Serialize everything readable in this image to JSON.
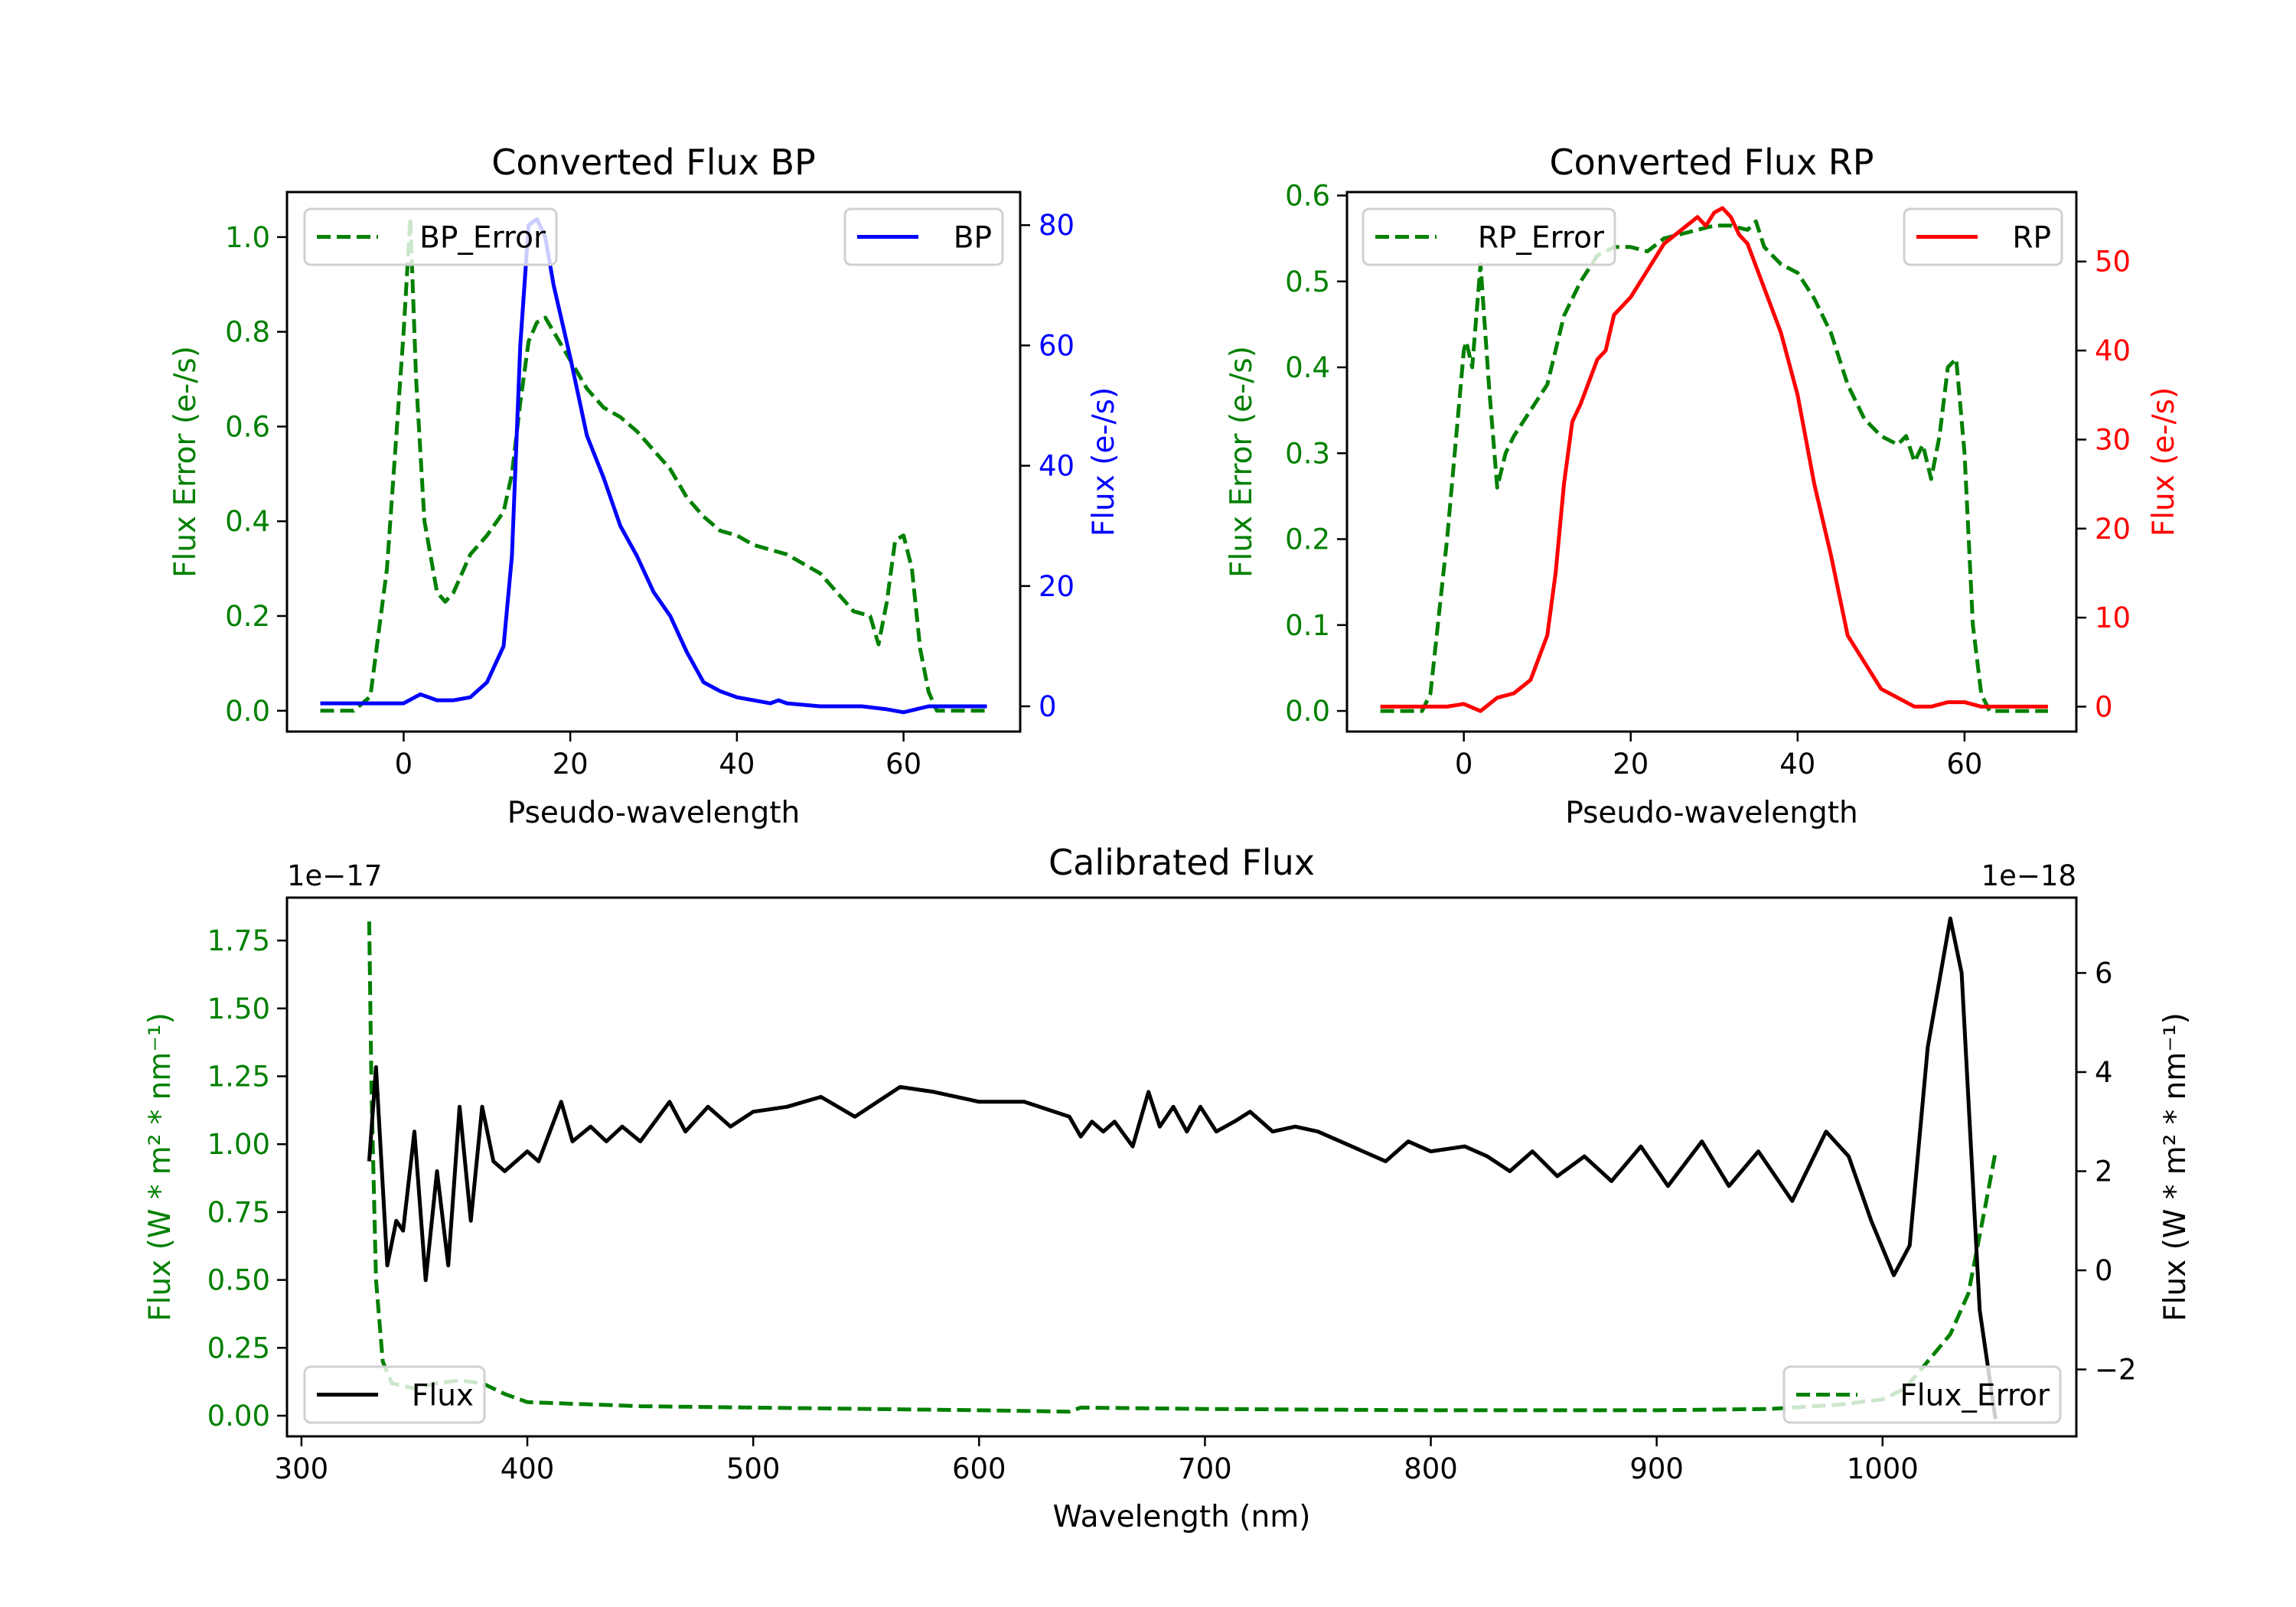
{
  "colors": {
    "green": "#008000",
    "blue": "#0000ff",
    "red": "#ff0000",
    "black": "#000000"
  },
  "chart_data": [
    {
      "id": "bp",
      "type": "line",
      "title": "Converted Flux BP",
      "xlabel": "Pseudo-wavelength",
      "ylabel": "Flux Error (e-/s)",
      "ylabel_right": "Flux (e-/s)",
      "xlim": [
        -14,
        74
      ],
      "ylim": [
        -0.044,
        1.095
      ],
      "ylim_right": [
        -4.2,
        85.5
      ],
      "xticks": [
        {
          "v": 0,
          "label": "0"
        },
        {
          "v": 20,
          "label": "20"
        },
        {
          "v": 40,
          "label": "40"
        },
        {
          "v": 60,
          "label": "60"
        }
      ],
      "yticks": [
        {
          "v": 0,
          "label": "0.0"
        },
        {
          "v": 0.2,
          "label": "0.2"
        },
        {
          "v": 0.4,
          "label": "0.4"
        },
        {
          "v": 0.6,
          "label": "0.6"
        },
        {
          "v": 0.8,
          "label": "0.8"
        },
        {
          "v": 1.0,
          "label": "1.0"
        }
      ],
      "yticks_right": [
        {
          "v": 0,
          "label": "0"
        },
        {
          "v": 20,
          "label": "20"
        },
        {
          "v": 40,
          "label": "40"
        },
        {
          "v": 60,
          "label": "60"
        },
        {
          "v": 80,
          "label": "80"
        }
      ],
      "left_color": "#008000",
      "right_color": "#0000ff",
      "series": [
        {
          "name": "BP_Error",
          "axis": "left",
          "style": "dashed",
          "color": "#008000",
          "legend": "top-left",
          "x": [
            -10,
            -6,
            -4,
            -2,
            0,
            0.8,
            1.5,
            2.5,
            3,
            4,
            5,
            6,
            8,
            10,
            12,
            13,
            14,
            15,
            16,
            17,
            18,
            20,
            22,
            24,
            26,
            28,
            30,
            32,
            34,
            36,
            38,
            40,
            42,
            44,
            46,
            48,
            50,
            52,
            54,
            56,
            57,
            58,
            59,
            60,
            61,
            62,
            63,
            64,
            70
          ],
          "y": [
            0,
            0,
            0.03,
            0.3,
            0.8,
            1.04,
            0.7,
            0.4,
            0.35,
            0.25,
            0.23,
            0.25,
            0.33,
            0.37,
            0.42,
            0.5,
            0.65,
            0.78,
            0.82,
            0.83,
            0.8,
            0.74,
            0.68,
            0.64,
            0.62,
            0.59,
            0.55,
            0.51,
            0.45,
            0.41,
            0.38,
            0.37,
            0.35,
            0.34,
            0.33,
            0.31,
            0.29,
            0.25,
            0.21,
            0.2,
            0.14,
            0.23,
            0.36,
            0.37,
            0.3,
            0.13,
            0.04,
            0,
            0
          ]
        },
        {
          "name": "BP",
          "axis": "right",
          "style": "solid",
          "color": "#0000ff",
          "legend": "top-right",
          "x": [
            -10,
            -5,
            0,
            2,
            4,
            6,
            8,
            10,
            12,
            13,
            14,
            15,
            16,
            17,
            18,
            20,
            22,
            24,
            26,
            28,
            30,
            32,
            34,
            36,
            38,
            40,
            42,
            44,
            45,
            46,
            50,
            55,
            58,
            60,
            63,
            70
          ],
          "y": [
            0.5,
            0.5,
            0.5,
            2,
            1,
            1,
            1.5,
            4,
            10,
            25,
            60,
            80,
            81,
            78,
            70,
            58,
            45,
            38,
            30,
            25,
            19,
            15,
            9,
            4,
            2.5,
            1.5,
            1,
            0.5,
            1,
            0.5,
            0,
            0,
            -0.5,
            -1,
            0,
            0
          ]
        }
      ]
    },
    {
      "id": "rp",
      "type": "line",
      "title": "Converted Flux RP",
      "xlabel": "Pseudo-wavelength",
      "ylabel": "Flux Error (e-/s)",
      "ylabel_right": "Flux (e-/s)",
      "xlim": [
        -14,
        73.4
      ],
      "ylim": [
        -0.024,
        0.604
      ],
      "ylim_right": [
        -2.8,
        57.8
      ],
      "xticks": [
        {
          "v": 0,
          "label": "0"
        },
        {
          "v": 20,
          "label": "20"
        },
        {
          "v": 40,
          "label": "40"
        },
        {
          "v": 60,
          "label": "60"
        }
      ],
      "yticks": [
        {
          "v": 0,
          "label": "0.0"
        },
        {
          "v": 0.1,
          "label": "0.1"
        },
        {
          "v": 0.2,
          "label": "0.2"
        },
        {
          "v": 0.3,
          "label": "0.3"
        },
        {
          "v": 0.4,
          "label": "0.4"
        },
        {
          "v": 0.5,
          "label": "0.5"
        },
        {
          "v": 0.6,
          "label": "0.6"
        }
      ],
      "yticks_right": [
        {
          "v": 0,
          "label": "0"
        },
        {
          "v": 10,
          "label": "10"
        },
        {
          "v": 20,
          "label": "20"
        },
        {
          "v": 30,
          "label": "30"
        },
        {
          "v": 40,
          "label": "40"
        },
        {
          "v": 50,
          "label": "50"
        }
      ],
      "left_color": "#008000",
      "right_color": "#ff0000",
      "series": [
        {
          "name": "RP_Error",
          "axis": "left",
          "style": "dashed",
          "color": "#008000",
          "legend": "top-left",
          "x": [
            -10,
            -5,
            -4,
            -2,
            0,
            0.3,
            1,
            2,
            3,
            4,
            5,
            6,
            8,
            10,
            12,
            14,
            16,
            18,
            20,
            22,
            24,
            26,
            28,
            30,
            32,
            34,
            35,
            36,
            38,
            40,
            42,
            44,
            46,
            48,
            50,
            52,
            53,
            54,
            55,
            56,
            57,
            58,
            59,
            60,
            61,
            62,
            63,
            70
          ],
          "y": [
            0,
            0,
            0.02,
            0.2,
            0.42,
            0.43,
            0.4,
            0.52,
            0.38,
            0.26,
            0.3,
            0.32,
            0.35,
            0.38,
            0.46,
            0.5,
            0.53,
            0.54,
            0.54,
            0.535,
            0.55,
            0.555,
            0.56,
            0.565,
            0.565,
            0.56,
            0.57,
            0.54,
            0.52,
            0.51,
            0.48,
            0.44,
            0.38,
            0.34,
            0.32,
            0.31,
            0.32,
            0.29,
            0.31,
            0.27,
            0.32,
            0.4,
            0.41,
            0.3,
            0.1,
            0.02,
            0,
            0
          ]
        },
        {
          "name": "RP",
          "axis": "right",
          "style": "solid",
          "color": "#ff0000",
          "legend": "top-right",
          "x": [
            -10,
            -2,
            0,
            2,
            4,
            6,
            8,
            10,
            11,
            12,
            13,
            14,
            16,
            17,
            18,
            20,
            22,
            24,
            26,
            28,
            29,
            30,
            31,
            32,
            33,
            34,
            36,
            38,
            40,
            42,
            44,
            46,
            48,
            50,
            52,
            54,
            56,
            58,
            60,
            62,
            70
          ],
          "y": [
            0,
            0,
            0.3,
            -0.5,
            1,
            1.5,
            3,
            8,
            15,
            25,
            32,
            34,
            39,
            40,
            44,
            46,
            49,
            52,
            53.5,
            55,
            54,
            55.5,
            56,
            55,
            53,
            52,
            47,
            42,
            35,
            25,
            17,
            8,
            5,
            2,
            1,
            0,
            0,
            0.5,
            0.5,
            0,
            0
          ]
        }
      ]
    },
    {
      "id": "cal",
      "type": "line",
      "title": "Calibrated Flux",
      "xlabel": "Wavelength (nm)",
      "ylabel": "Flux (W * m² * nm⁻¹)",
      "ylabel_right": "Flux (W * m² * nm⁻¹)",
      "offset_left": "1e−17",
      "offset_right": "1e−18",
      "xlim": [
        293.6,
        1085.8
      ],
      "ylim": [
        -0.076,
        1.908
      ],
      "ylim_right": [
        -3.35,
        7.52
      ],
      "xticks": [
        {
          "v": 300,
          "label": "300"
        },
        {
          "v": 400,
          "label": "400"
        },
        {
          "v": 500,
          "label": "500"
        },
        {
          "v": 600,
          "label": "600"
        },
        {
          "v": 700,
          "label": "700"
        },
        {
          "v": 800,
          "label": "800"
        },
        {
          "v": 900,
          "label": "900"
        },
        {
          "v": 1000,
          "label": "1000"
        }
      ],
      "yticks": [
        {
          "v": 0,
          "label": "0.00"
        },
        {
          "v": 0.25,
          "label": "0.25"
        },
        {
          "v": 0.5,
          "label": "0.50"
        },
        {
          "v": 0.75,
          "label": "0.75"
        },
        {
          "v": 1.0,
          "label": "1.00"
        },
        {
          "v": 1.25,
          "label": "1.25"
        },
        {
          "v": 1.5,
          "label": "1.50"
        },
        {
          "v": 1.75,
          "label": "1.75"
        }
      ],
      "yticks_right": [
        {
          "v": -2,
          "label": "−2"
        },
        {
          "v": 0,
          "label": "0"
        },
        {
          "v": 2,
          "label": "2"
        },
        {
          "v": 4,
          "label": "4"
        },
        {
          "v": 6,
          "label": "6"
        }
      ],
      "left_color": "#008000",
      "right_color": "#000000",
      "series": [
        {
          "name": "Flux_Error",
          "axis": "left",
          "style": "dashed",
          "color": "#008000",
          "legend": "lower-right",
          "x": [
            330,
            331,
            333,
            336,
            340,
            350,
            360,
            370,
            380,
            390,
            400,
            450,
            500,
            600,
            640,
            645,
            700,
            800,
            900,
            950,
            980,
            1000,
            1010,
            1020,
            1030,
            1038,
            1045,
            1050
          ],
          "y": [
            1.82,
            1.2,
            0.5,
            0.2,
            0.12,
            0.1,
            0.12,
            0.13,
            0.12,
            0.08,
            0.05,
            0.035,
            0.03,
            0.02,
            0.015,
            0.03,
            0.025,
            0.02,
            0.02,
            0.025,
            0.04,
            0.06,
            0.1,
            0.2,
            0.3,
            0.45,
            0.75,
            0.97
          ]
        },
        {
          "name": "Flux",
          "axis": "right",
          "style": "solid",
          "color": "#000000",
          "legend": "lower-left",
          "x": [
            330,
            333,
            338,
            342,
            345,
            350,
            355,
            360,
            365,
            370,
            375,
            380,
            385,
            390,
            400,
            405,
            415,
            420,
            428,
            435,
            442,
            450,
            463,
            470,
            480,
            490,
            500,
            515,
            530,
            545,
            565,
            580,
            600,
            620,
            640,
            645,
            650,
            655,
            660,
            668,
            675,
            680,
            686,
            692,
            698,
            705,
            713,
            720,
            730,
            740,
            750,
            765,
            780,
            790,
            800,
            815,
            825,
            835,
            845,
            856,
            868,
            880,
            893,
            905,
            920,
            932,
            945,
            960,
            975,
            985,
            995,
            1005,
            1012,
            1020,
            1030,
            1035,
            1043,
            1050
          ],
          "y": [
            2.2,
            4.1,
            0.1,
            1,
            0.8,
            2.8,
            -0.2,
            2,
            0.1,
            3.3,
            1,
            3.3,
            2.2,
            2,
            2.4,
            2.2,
            3.4,
            2.6,
            2.9,
            2.6,
            2.9,
            2.6,
            3.4,
            2.8,
            3.3,
            2.9,
            3.2,
            3.3,
            3.5,
            3.1,
            3.7,
            3.6,
            3.4,
            3.4,
            3.1,
            2.7,
            3.0,
            2.8,
            3.0,
            2.5,
            3.6,
            2.9,
            3.3,
            2.8,
            3.3,
            2.8,
            3.0,
            3.2,
            2.8,
            2.9,
            2.8,
            2.5,
            2.2,
            2.6,
            2.4,
            2.5,
            2.3,
            2.0,
            2.4,
            1.9,
            2.3,
            1.8,
            2.5,
            1.7,
            2.6,
            1.7,
            2.4,
            1.4,
            2.8,
            2.3,
            1.0,
            -0.1,
            0.5,
            4.5,
            7.1,
            6,
            -0.8,
            -3
          ]
        }
      ]
    }
  ]
}
